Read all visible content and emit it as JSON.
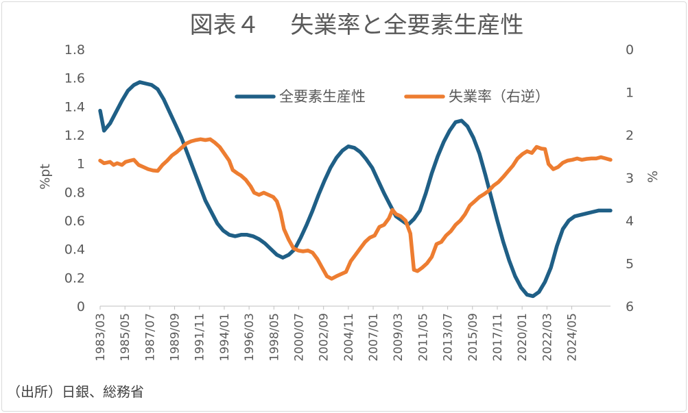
{
  "title": "図表４　 失業率と全要素生産性",
  "source": "（出所）日銀、総務省",
  "chart_data": {
    "type": "line",
    "title": "図表４　 失業率と全要素生産性",
    "ylabel_left": "%pt",
    "ylabel_right": "%",
    "ylim_left": [
      0,
      1.8
    ],
    "ylim_right": [
      6,
      0
    ],
    "right_axis_reversed": true,
    "yticks_left": [
      "0",
      "0.2",
      "0.4",
      "0.6",
      "0.8",
      "1",
      "1.2",
      "1.4",
      "1.6",
      "1.8"
    ],
    "yticks_right": [
      "0",
      "1",
      "2",
      "3",
      "4",
      "5",
      "6"
    ],
    "xticks": [
      "1983/03",
      "1985/05",
      "1987/07",
      "1989/09",
      "1991/11",
      "1994/01",
      "1996/03",
      "1998/05",
      "2000/07",
      "2002/09",
      "2004/11",
      "2007/01",
      "2009/03",
      "2011/05",
      "2013/07",
      "2015/09",
      "2017/11",
      "2020/01",
      "2022/03",
      "2024/05"
    ],
    "grid": false,
    "legend_position": "top-right",
    "series": [
      {
        "name": "全要素生産性",
        "axis": "left",
        "color": "#1f5f86",
        "points": [
          [
            1983.17,
            1.37
          ],
          [
            1983.5,
            1.23
          ],
          [
            1984.0,
            1.28
          ],
          [
            1984.5,
            1.36
          ],
          [
            1985.0,
            1.44
          ],
          [
            1985.5,
            1.51
          ],
          [
            1986.0,
            1.55
          ],
          [
            1986.5,
            1.57
          ],
          [
            1987.0,
            1.56
          ],
          [
            1987.5,
            1.55
          ],
          [
            1988.0,
            1.52
          ],
          [
            1988.5,
            1.45
          ],
          [
            1989.0,
            1.36
          ],
          [
            1989.5,
            1.27
          ],
          [
            1990.0,
            1.18
          ],
          [
            1990.5,
            1.07
          ],
          [
            1991.0,
            0.96
          ],
          [
            1991.5,
            0.85
          ],
          [
            1992.0,
            0.74
          ],
          [
            1992.5,
            0.66
          ],
          [
            1993.0,
            0.58
          ],
          [
            1993.5,
            0.53
          ],
          [
            1994.0,
            0.5
          ],
          [
            1994.5,
            0.49
          ],
          [
            1995.0,
            0.5
          ],
          [
            1995.5,
            0.5
          ],
          [
            1996.0,
            0.49
          ],
          [
            1996.5,
            0.47
          ],
          [
            1997.0,
            0.44
          ],
          [
            1997.5,
            0.4
          ],
          [
            1998.0,
            0.36
          ],
          [
            1998.5,
            0.34
          ],
          [
            1999.0,
            0.36
          ],
          [
            1999.5,
            0.4
          ],
          [
            2000.0,
            0.48
          ],
          [
            2000.5,
            0.57
          ],
          [
            2001.0,
            0.67
          ],
          [
            2001.5,
            0.78
          ],
          [
            2002.0,
            0.88
          ],
          [
            2002.5,
            0.97
          ],
          [
            2003.0,
            1.04
          ],
          [
            2003.5,
            1.09
          ],
          [
            2004.0,
            1.12
          ],
          [
            2004.5,
            1.11
          ],
          [
            2005.0,
            1.08
          ],
          [
            2005.5,
            1.03
          ],
          [
            2006.0,
            0.97
          ],
          [
            2006.5,
            0.88
          ],
          [
            2007.0,
            0.79
          ],
          [
            2007.5,
            0.71
          ],
          [
            2008.0,
            0.63
          ],
          [
            2008.5,
            0.6
          ],
          [
            2009.0,
            0.57
          ],
          [
            2009.5,
            0.61
          ],
          [
            2010.0,
            0.67
          ],
          [
            2010.5,
            0.79
          ],
          [
            2011.0,
            0.93
          ],
          [
            2011.5,
            1.05
          ],
          [
            2012.0,
            1.15
          ],
          [
            2012.5,
            1.23
          ],
          [
            2013.0,
            1.29
          ],
          [
            2013.5,
            1.3
          ],
          [
            2014.0,
            1.26
          ],
          [
            2014.5,
            1.18
          ],
          [
            2015.0,
            1.07
          ],
          [
            2015.5,
            0.92
          ],
          [
            2016.0,
            0.76
          ],
          [
            2016.5,
            0.6
          ],
          [
            2017.0,
            0.45
          ],
          [
            2017.5,
            0.32
          ],
          [
            2018.0,
            0.21
          ],
          [
            2018.5,
            0.13
          ],
          [
            2019.0,
            0.08
          ],
          [
            2019.5,
            0.07
          ],
          [
            2020.0,
            0.1
          ],
          [
            2020.5,
            0.17
          ],
          [
            2021.0,
            0.27
          ],
          [
            2021.5,
            0.42
          ],
          [
            2022.0,
            0.54
          ],
          [
            2022.5,
            0.6
          ],
          [
            2023.0,
            0.63
          ],
          [
            2023.5,
            0.64
          ],
          [
            2024.0,
            0.65
          ],
          [
            2024.5,
            0.66
          ],
          [
            2025.0,
            0.67
          ],
          [
            2025.5,
            0.67
          ],
          [
            2026.0,
            0.67
          ]
        ]
      },
      {
        "name": "失業率（右逆）",
        "axis": "right",
        "color": "#ed7d31",
        "points": [
          [
            1983.17,
            2.6
          ],
          [
            1983.5,
            2.66
          ],
          [
            1984.0,
            2.63
          ],
          [
            1984.3,
            2.7
          ],
          [
            1984.6,
            2.66
          ],
          [
            1985.0,
            2.7
          ],
          [
            1985.3,
            2.63
          ],
          [
            1985.7,
            2.6
          ],
          [
            1986.0,
            2.58
          ],
          [
            1986.4,
            2.7
          ],
          [
            1986.8,
            2.75
          ],
          [
            1987.2,
            2.8
          ],
          [
            1987.6,
            2.83
          ],
          [
            1988.0,
            2.84
          ],
          [
            1988.4,
            2.7
          ],
          [
            1988.8,
            2.6
          ],
          [
            1989.2,
            2.48
          ],
          [
            1989.6,
            2.4
          ],
          [
            1990.0,
            2.3
          ],
          [
            1990.4,
            2.2
          ],
          [
            1990.8,
            2.15
          ],
          [
            1991.2,
            2.12
          ],
          [
            1991.6,
            2.1
          ],
          [
            1992.0,
            2.12
          ],
          [
            1992.4,
            2.1
          ],
          [
            1992.8,
            2.18
          ],
          [
            1993.2,
            2.28
          ],
          [
            1993.6,
            2.44
          ],
          [
            1994.0,
            2.6
          ],
          [
            1994.3,
            2.82
          ],
          [
            1994.7,
            2.9
          ],
          [
            1995.0,
            2.95
          ],
          [
            1995.4,
            3.05
          ],
          [
            1995.8,
            3.2
          ],
          [
            1996.1,
            3.35
          ],
          [
            1996.5,
            3.4
          ],
          [
            1996.9,
            3.35
          ],
          [
            1997.3,
            3.4
          ],
          [
            1997.7,
            3.45
          ],
          [
            1998.0,
            3.55
          ],
          [
            1998.3,
            3.8
          ],
          [
            1998.6,
            4.2
          ],
          [
            1999.0,
            4.45
          ],
          [
            1999.4,
            4.65
          ],
          [
            1999.8,
            4.7
          ],
          [
            2000.2,
            4.72
          ],
          [
            2000.6,
            4.7
          ],
          [
            2001.0,
            4.75
          ],
          [
            2001.4,
            4.9
          ],
          [
            2001.8,
            5.1
          ],
          [
            2002.2,
            5.3
          ],
          [
            2002.6,
            5.36
          ],
          [
            2003.0,
            5.3
          ],
          [
            2003.4,
            5.25
          ],
          [
            2003.8,
            5.2
          ],
          [
            2004.2,
            4.95
          ],
          [
            2004.6,
            4.8
          ],
          [
            2005.0,
            4.65
          ],
          [
            2005.4,
            4.5
          ],
          [
            2005.8,
            4.4
          ],
          [
            2006.2,
            4.35
          ],
          [
            2006.6,
            4.15
          ],
          [
            2007.0,
            4.1
          ],
          [
            2007.4,
            3.95
          ],
          [
            2007.7,
            3.75
          ],
          [
            2008.0,
            3.85
          ],
          [
            2008.4,
            3.9
          ],
          [
            2008.8,
            4.0
          ],
          [
            2009.2,
            4.3
          ],
          [
            2009.5,
            5.15
          ],
          [
            2009.8,
            5.18
          ],
          [
            2010.2,
            5.1
          ],
          [
            2010.6,
            5.0
          ],
          [
            2011.0,
            4.85
          ],
          [
            2011.4,
            4.55
          ],
          [
            2011.8,
            4.5
          ],
          [
            2012.2,
            4.35
          ],
          [
            2012.6,
            4.25
          ],
          [
            2013.0,
            4.1
          ],
          [
            2013.4,
            4.0
          ],
          [
            2013.8,
            3.85
          ],
          [
            2014.2,
            3.65
          ],
          [
            2014.6,
            3.55
          ],
          [
            2015.0,
            3.45
          ],
          [
            2015.4,
            3.38
          ],
          [
            2015.8,
            3.3
          ],
          [
            2016.2,
            3.18
          ],
          [
            2016.6,
            3.1
          ],
          [
            2017.0,
            2.98
          ],
          [
            2017.4,
            2.85
          ],
          [
            2017.8,
            2.72
          ],
          [
            2018.2,
            2.55
          ],
          [
            2018.6,
            2.45
          ],
          [
            2019.0,
            2.38
          ],
          [
            2019.4,
            2.42
          ],
          [
            2019.8,
            2.28
          ],
          [
            2020.2,
            2.32
          ],
          [
            2020.5,
            2.33
          ],
          [
            2020.8,
            2.68
          ],
          [
            2021.2,
            2.8
          ],
          [
            2021.6,
            2.75
          ],
          [
            2022.0,
            2.65
          ],
          [
            2022.4,
            2.6
          ],
          [
            2022.8,
            2.58
          ],
          [
            2023.2,
            2.55
          ],
          [
            2023.6,
            2.58
          ],
          [
            2024.0,
            2.56
          ],
          [
            2024.4,
            2.55
          ],
          [
            2024.8,
            2.55
          ],
          [
            2025.2,
            2.52
          ],
          [
            2025.6,
            2.55
          ],
          [
            2026.0,
            2.58
          ]
        ]
      }
    ]
  }
}
